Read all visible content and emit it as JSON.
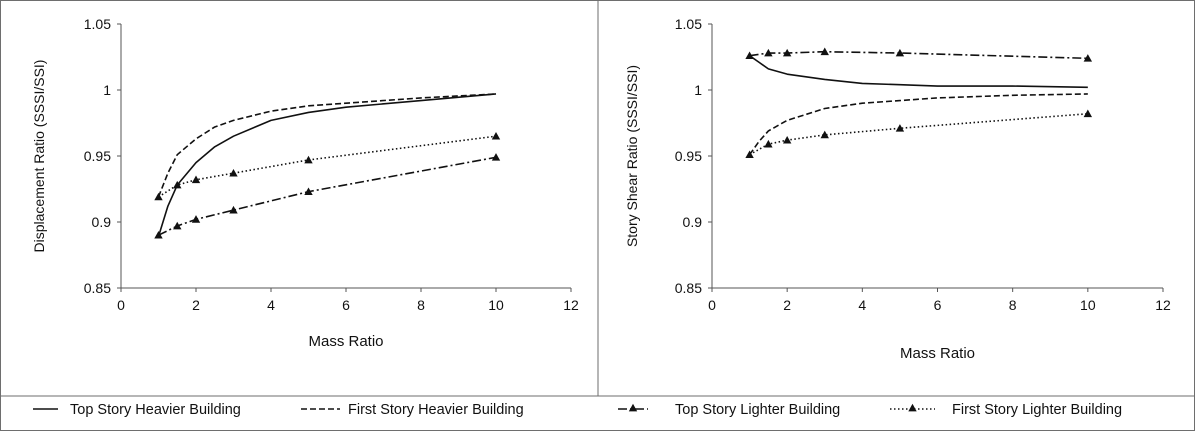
{
  "chart_data": [
    {
      "type": "line",
      "title": "",
      "xlabel": "Mass Ratio",
      "ylabel": "Displacement Ratio (SSSI/SSI)",
      "xlim": [
        0,
        12
      ],
      "ylim": [
        0.85,
        1.05
      ],
      "xticks": [
        0,
        2,
        4,
        6,
        8,
        10,
        12
      ],
      "yticks": [
        0.85,
        0.9,
        0.95,
        1,
        1.05
      ],
      "xtick_labels": [
        "0",
        "2",
        "4",
        "6",
        "8",
        "10",
        "12"
      ],
      "ytick_labels": [
        "0.85",
        "0.9",
        "0.95",
        "1",
        "1.05"
      ],
      "grid": false,
      "series": [
        {
          "name": "Top Story Heavier Building",
          "x": [
            1,
            1.25,
            1.5,
            2,
            2.5,
            3,
            4,
            5,
            6,
            8,
            10
          ],
          "y": [
            0.889,
            0.912,
            0.928,
            0.945,
            0.957,
            0.965,
            0.977,
            0.983,
            0.987,
            0.992,
            0.997
          ]
        },
        {
          "name": "First Story Heavier Building",
          "x": [
            1,
            1.25,
            1.5,
            2,
            2.5,
            3,
            4,
            5,
            6,
            8,
            10
          ],
          "y": [
            0.919,
            0.937,
            0.951,
            0.963,
            0.972,
            0.977,
            0.984,
            0.988,
            0.99,
            0.994,
            0.997
          ]
        },
        {
          "name": "Top Story Lighter Building",
          "x": [
            1,
            1.5,
            2,
            3,
            5,
            10
          ],
          "y": [
            0.89,
            0.897,
            0.902,
            0.909,
            0.923,
            0.949
          ]
        },
        {
          "name": "First Story Lighter Building",
          "x": [
            1,
            1.5,
            2,
            3,
            5,
            10
          ],
          "y": [
            0.919,
            0.928,
            0.932,
            0.937,
            0.947,
            0.965
          ]
        }
      ]
    },
    {
      "type": "line",
      "title": "",
      "xlabel": "Mass Ratio",
      "ylabel": "Story Shear Ratio (SSSI/SSI)",
      "xlim": [
        0,
        12
      ],
      "ylim": [
        0.85,
        1.05
      ],
      "xticks": [
        0,
        2,
        4,
        6,
        8,
        10,
        12
      ],
      "yticks": [
        0.85,
        0.9,
        0.95,
        1,
        1.05
      ],
      "xtick_labels": [
        "0",
        "2",
        "4",
        "6",
        "8",
        "10",
        "12"
      ],
      "ytick_labels": [
        "0.85",
        "0.9",
        "0.95",
        "1",
        "1.05"
      ],
      "grid": false,
      "series": [
        {
          "name": "Top Story Heavier Building",
          "x": [
            1,
            1.25,
            1.5,
            2,
            3,
            4,
            5,
            6,
            8,
            10
          ],
          "y": [
            1.026,
            1.021,
            1.016,
            1.012,
            1.008,
            1.005,
            1.004,
            1.003,
            1.003,
            1.002
          ]
        },
        {
          "name": "First Story Heavier Building",
          "x": [
            1,
            1.25,
            1.5,
            2,
            3,
            4,
            5,
            6,
            8,
            10
          ],
          "y": [
            0.951,
            0.961,
            0.969,
            0.977,
            0.986,
            0.99,
            0.992,
            0.994,
            0.996,
            0.997
          ]
        },
        {
          "name": "Top Story Lighter Building",
          "x": [
            1,
            1.5,
            2,
            3,
            5,
            10
          ],
          "y": [
            1.026,
            1.028,
            1.028,
            1.029,
            1.028,
            1.024
          ]
        },
        {
          "name": "First Story Lighter Building",
          "x": [
            1,
            1.5,
            2,
            3,
            5,
            10
          ],
          "y": [
            0.951,
            0.959,
            0.962,
            0.966,
            0.971,
            0.982
          ]
        }
      ]
    }
  ],
  "legend": {
    "placement": "bottom",
    "items": [
      {
        "label": "Top Story Heavier Building",
        "style": "solid",
        "marker": false
      },
      {
        "label": "First Story Heavier Building",
        "style": "dashed",
        "marker": false
      },
      {
        "label": "Top Story Lighter Building",
        "style": "dashdot",
        "marker": true
      },
      {
        "label": "First Story Lighter Building",
        "style": "dotted",
        "marker": true
      }
    ]
  },
  "colors": {
    "line": "#111111",
    "frame": "#6e6e6e"
  }
}
